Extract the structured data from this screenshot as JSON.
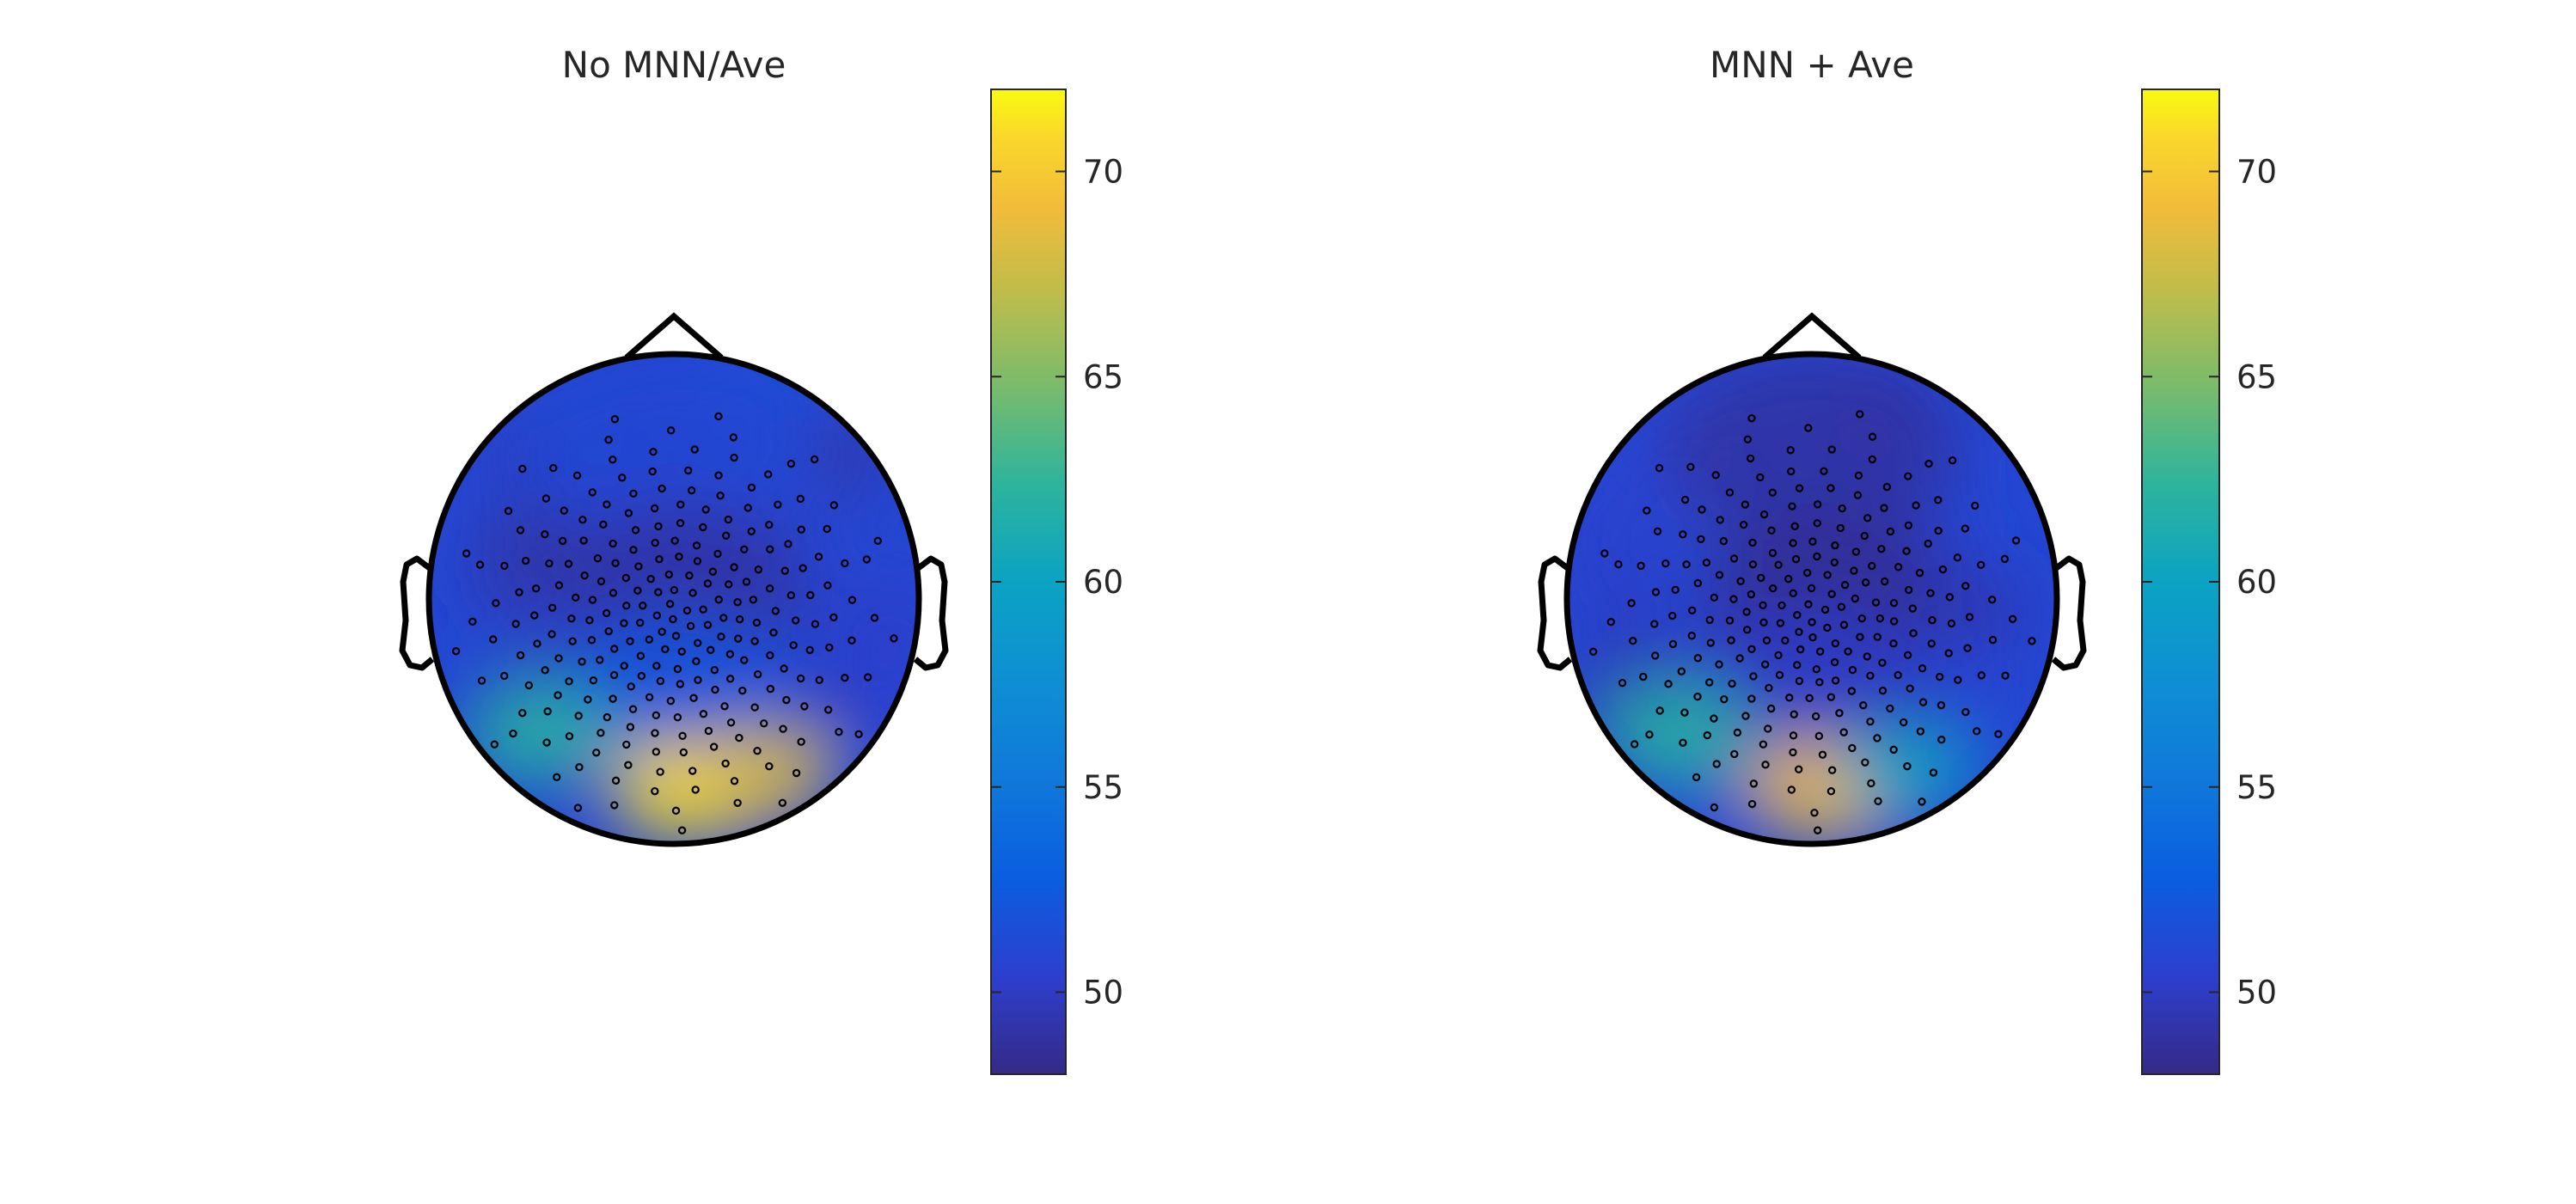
{
  "chart_data": [
    {
      "type": "heatmap",
      "subtype": "eeg-topoplot",
      "title": "No MNN/Ave",
      "colorbar": {
        "colormap": "parula",
        "range": [
          48,
          72
        ],
        "ticks": [
          50,
          55,
          60,
          65,
          70
        ],
        "tick_labels": [
          "50",
          "55",
          "60",
          "65",
          "70"
        ],
        "location": "right"
      },
      "value_regions": [
        {
          "region": "frontal",
          "level": 51
        },
        {
          "region": "central",
          "level": 49
        },
        {
          "region": "parietal",
          "level": 52
        },
        {
          "region": "occipital-left",
          "level": 62
        },
        {
          "region": "occipital-center",
          "level": 71
        },
        {
          "region": "occipital-right",
          "level": 68
        }
      ],
      "electrode_count": 256
    },
    {
      "type": "heatmap",
      "subtype": "eeg-topoplot",
      "title": "MNN + Ave",
      "colorbar": {
        "colormap": "parula",
        "range": [
          48,
          72
        ],
        "ticks": [
          50,
          55,
          60,
          65,
          70
        ],
        "tick_labels": [
          "50",
          "55",
          "60",
          "65",
          "70"
        ],
        "location": "right"
      },
      "value_regions": [
        {
          "region": "frontal",
          "level": 49
        },
        {
          "region": "central",
          "level": 48.5
        },
        {
          "region": "parietal",
          "level": 50
        },
        {
          "region": "occipital-left",
          "level": 62
        },
        {
          "region": "occipital-center",
          "level": 69
        },
        {
          "region": "occipital-right",
          "level": 60
        }
      ],
      "electrode_count": 256
    }
  ]
}
